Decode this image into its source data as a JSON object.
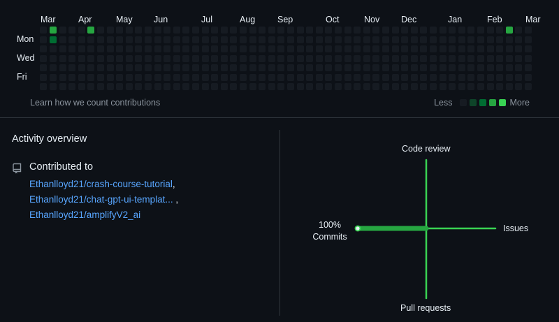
{
  "contributions": {
    "months": [
      "Mar",
      "Apr",
      "May",
      "Jun",
      "Jul",
      "Aug",
      "Sep",
      "Oct",
      "Nov",
      "Dec",
      "Jan",
      "Feb",
      "Mar"
    ],
    "day_labels": [
      "Mon",
      "Wed",
      "Fri"
    ],
    "active_cells": [
      {
        "week": 1,
        "day": 0,
        "level": 3
      },
      {
        "week": 1,
        "day": 1,
        "level": 2
      },
      {
        "week": 5,
        "day": 0,
        "level": 3
      },
      {
        "week": 49,
        "day": 0,
        "level": 3
      }
    ],
    "footer_link": "Learn how we count contributions",
    "legend_less": "Less",
    "legend_more": "More",
    "level_colors": [
      "#161b22",
      "#0e4429",
      "#006d32",
      "#26a641",
      "#39d353"
    ]
  },
  "activity": {
    "title": "Activity overview",
    "contributed_to_label": "Contributed to",
    "repos": [
      {
        "name": "Ethanlloyd21/crash-course-tutorial",
        "suffix": ","
      },
      {
        "name": "Ethanlloyd21/chat-gpt-ui-templat...",
        "suffix": " ,"
      },
      {
        "name": "Ethanlloyd21/amplifyV2_ai",
        "suffix": ""
      }
    ],
    "axes": {
      "top": "Code review",
      "bottom": "Pull requests",
      "right": "Issues",
      "left": "Commits",
      "left_percent": "100%",
      "commits_fraction": 1.0,
      "line_color": "#39d353"
    }
  }
}
